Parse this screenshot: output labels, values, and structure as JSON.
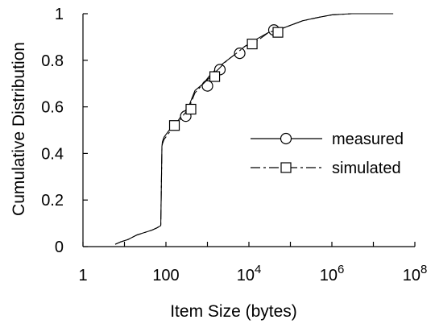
{
  "chart_data": {
    "type": "line",
    "title": "",
    "xlabel": "Item Size (bytes)",
    "ylabel": "Cumulative Distribution",
    "xscale": "log10",
    "xlim": [
      1,
      100000000
    ],
    "ylim": [
      0,
      1
    ],
    "grid": false,
    "legend_position": "right-middle",
    "x_ticks": [
      {
        "value": 1,
        "base": "1",
        "exp": ""
      },
      {
        "value": 100,
        "base": "100",
        "exp": ""
      },
      {
        "value": 10000,
        "base": "10",
        "exp": "4"
      },
      {
        "value": 1000000,
        "base": "10",
        "exp": "6"
      },
      {
        "value": 100000000,
        "base": "10",
        "exp": "8"
      }
    ],
    "y_ticks": [
      {
        "value": 0,
        "label": "0"
      },
      {
        "value": 0.2,
        "label": "0.2"
      },
      {
        "value": 0.4,
        "label": "0.4"
      },
      {
        "value": 0.6,
        "label": "0.6"
      },
      {
        "value": 0.8,
        "label": "0.8"
      },
      {
        "value": 1,
        "label": "1"
      }
    ],
    "series": [
      {
        "name": "measured",
        "line_style": "solid",
        "marker": "circle",
        "x": [
          6,
          8,
          12,
          20,
          30,
          45,
          60,
          75,
          80,
          82,
          90,
          120,
          180,
          250,
          350,
          500,
          800,
          1200,
          1800,
          3000,
          5000,
          8000,
          15000,
          30000,
          50000,
          100000,
          200000,
          500000,
          1000000,
          3000000,
          10000000,
          30000000
        ],
        "y": [
          0.01,
          0.02,
          0.03,
          0.05,
          0.06,
          0.07,
          0.08,
          0.09,
          0.43,
          0.45,
          0.47,
          0.5,
          0.53,
          0.57,
          0.6,
          0.67,
          0.7,
          0.74,
          0.77,
          0.8,
          0.83,
          0.86,
          0.89,
          0.92,
          0.93,
          0.95,
          0.97,
          0.985,
          0.995,
          1.0,
          1.0,
          1.0
        ],
        "marker_x": [
          300,
          1000,
          2000,
          6000,
          40000
        ],
        "marker_y": [
          0.56,
          0.69,
          0.76,
          0.83,
          0.93
        ]
      },
      {
        "name": "simulated",
        "line_style": "dashed",
        "marker": "square",
        "x": [
          6,
          8,
          12,
          20,
          30,
          45,
          60,
          75,
          80,
          82,
          90,
          120,
          180,
          250,
          350,
          500,
          800,
          1200,
          1800,
          3000,
          5000,
          8000,
          15000,
          30000,
          50000,
          100000,
          200000,
          500000,
          1000000,
          3000000,
          10000000,
          30000000
        ],
        "y": [
          0.01,
          0.02,
          0.03,
          0.05,
          0.06,
          0.07,
          0.08,
          0.09,
          0.42,
          0.44,
          0.46,
          0.49,
          0.52,
          0.56,
          0.59,
          0.66,
          0.7,
          0.73,
          0.76,
          0.8,
          0.83,
          0.86,
          0.88,
          0.92,
          0.93,
          0.95,
          0.97,
          0.985,
          0.995,
          1.0,
          1.0,
          1.0
        ],
        "marker_x": [
          160,
          400,
          1500,
          12000,
          50000
        ],
        "marker_y": [
          0.52,
          0.59,
          0.73,
          0.87,
          0.92
        ]
      }
    ]
  }
}
